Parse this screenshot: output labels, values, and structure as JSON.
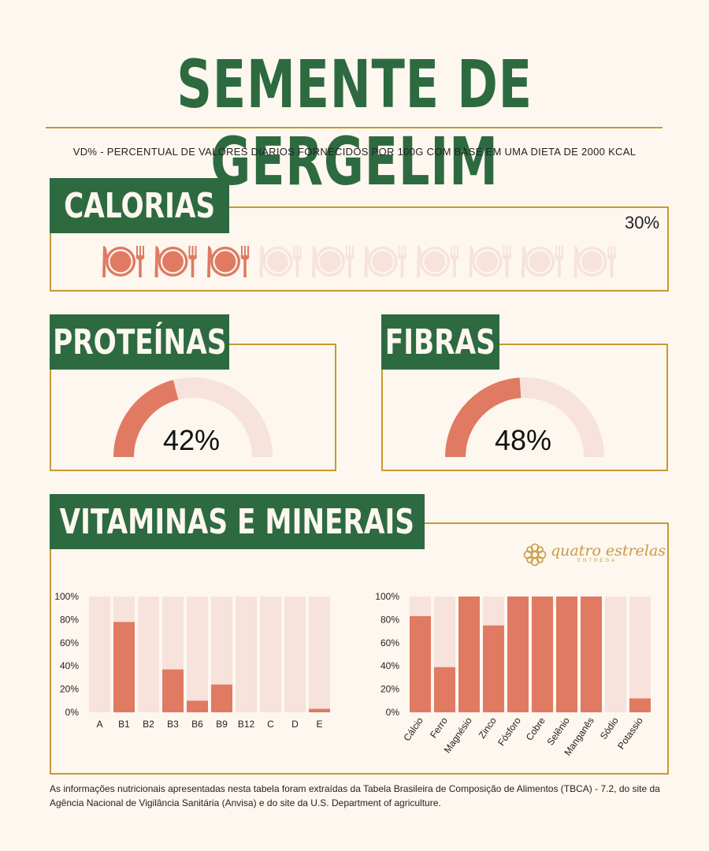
{
  "header": {
    "title": "SEMENTE DE GERGELIM",
    "subtitle": "VD% - PERCENTUAL DE VALORES DIÁRIOS FORNECIDOS POR 100G COM BASE EM UMA DIETA DE 2000 KCAL"
  },
  "calorias": {
    "label": "CALORIAS",
    "value": 30,
    "percent_text": "30%",
    "icon_total": 10
  },
  "proteinas": {
    "label": "PROTEÍNAS",
    "value": 42,
    "percent_text": "42%"
  },
  "fibras": {
    "label": "FIBRAS",
    "value": 48,
    "percent_text": "48%"
  },
  "vitaminas": {
    "label": "VITAMINAS E MINERAIS"
  },
  "logo": {
    "name": "quatro estrelas",
    "sub": "ENTREGA"
  },
  "colors": {
    "green": "#2d6a40",
    "gold": "#c89a2e",
    "coral": "#e07a62",
    "light": "#f7e2dc",
    "background": "#fdf7ef"
  },
  "chart_data": [
    {
      "type": "bar",
      "title": "Vitaminas",
      "categories": [
        "A",
        "B1",
        "B2",
        "B3",
        "B6",
        "B9",
        "B12",
        "C",
        "D",
        "E"
      ],
      "values": [
        0,
        78,
        0,
        37,
        10,
        24,
        0,
        0,
        0,
        3
      ],
      "ylim": [
        0,
        100
      ],
      "yticks": [
        "0%",
        "20%",
        "40%",
        "60%",
        "80%",
        "100%"
      ],
      "xlabel": "",
      "ylabel": ""
    },
    {
      "type": "bar",
      "title": "Minerais",
      "categories": [
        "Cálcio",
        "Ferro",
        "Magnésio",
        "Zinco",
        "Fósforo",
        "Cobre",
        "Selênio",
        "Manganês",
        "Sódio",
        "Potassio"
      ],
      "values": [
        83,
        39,
        100,
        75,
        100,
        100,
        100,
        100,
        0,
        12
      ],
      "ylim": [
        0,
        100
      ],
      "yticks": [
        "0%",
        "20%",
        "40%",
        "60%",
        "80%",
        "100%"
      ],
      "xlabel": "",
      "ylabel": ""
    }
  ],
  "footnote": "As informações nutricionais apresentadas nesta tabela foram extraídas da Tabela Brasileira de Composição de Alimentos (TBCA) - 7.2, do site da Agência Nacional de Vigilância Sanitária (Anvisa) e do site da U.S. Department of agriculture."
}
